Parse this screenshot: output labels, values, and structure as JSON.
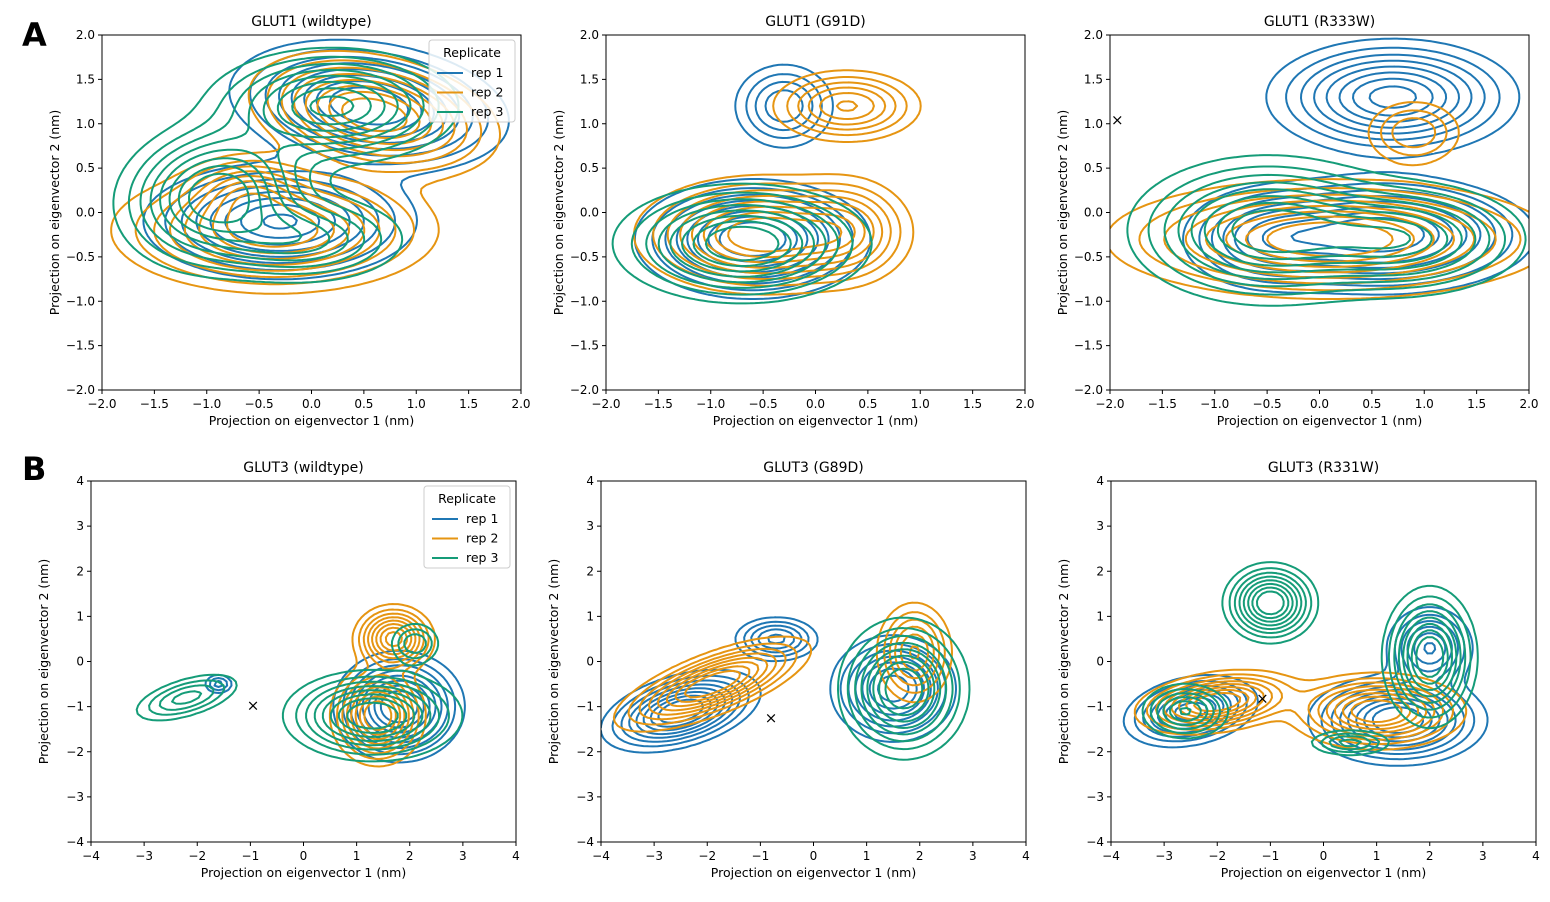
{
  "figure": {
    "panel_labels": [
      "A",
      "B"
    ]
  },
  "colors": {
    "rep 1": "#1f77b4",
    "rep 2": "#e69512",
    "rep 3": "#159c78"
  },
  "chart_data": [
    {
      "type": "contour",
      "title": "GLUT1 (wildtype)",
      "xlabel": "Projection on eigenvector 1 (nm)",
      "ylabel": "Projection on eigenvector 2 (nm)",
      "xlim": [
        -2.0,
        2.0
      ],
      "ylim": [
        -2.0,
        2.0
      ],
      "xticks": [
        "−2.0",
        "−1.5",
        "−1.0",
        "−0.5",
        "0.0",
        "0.5",
        "1.0",
        "1.5",
        "2.0"
      ],
      "yticks": [
        "−2.0",
        "−1.5",
        "−1.0",
        "−0.5",
        "0.0",
        "0.5",
        "1.0",
        "1.5",
        "2.0"
      ],
      "grid": false,
      "legend": {
        "title": "Replicate",
        "entries": [
          "rep 1",
          "rep 2",
          "rep 3"
        ],
        "placement": "top-right"
      },
      "series": [
        {
          "name": "rep 1",
          "modes": [
            {
              "x": 0.55,
              "y": 1.2,
              "sx": 0.6,
              "sy": 0.32,
              "rot": -10,
              "w": 1.0
            },
            {
              "x": -0.3,
              "y": -0.1,
              "sx": 0.6,
              "sy": 0.3,
              "rot": 0,
              "w": 0.85
            }
          ]
        },
        {
          "name": "rep 2",
          "modes": [
            {
              "x": 0.6,
              "y": 1.1,
              "sx": 0.55,
              "sy": 0.3,
              "rot": -15,
              "w": 0.9
            },
            {
              "x": -0.35,
              "y": -0.2,
              "sx": 0.7,
              "sy": 0.32,
              "rot": 0,
              "w": 0.9
            },
            {
              "x": -0.6,
              "y": 0.25,
              "sx": 0.3,
              "sy": 0.2,
              "rot": 0,
              "w": 0.4
            }
          ]
        },
        {
          "name": "rep 3",
          "modes": [
            {
              "x": -0.9,
              "y": 0.2,
              "sx": 0.45,
              "sy": 0.38,
              "rot": 20,
              "w": 0.95
            },
            {
              "x": 0.2,
              "y": 1.2,
              "sx": 0.55,
              "sy": 0.3,
              "rot": 0,
              "w": 0.85
            },
            {
              "x": -0.1,
              "y": -0.3,
              "sx": 0.5,
              "sy": 0.25,
              "rot": 0,
              "w": 0.5
            }
          ]
        }
      ],
      "markers": []
    },
    {
      "type": "contour",
      "title": "GLUT1 (G91D)",
      "xlabel": "Projection on eigenvector 1 (nm)",
      "ylabel": "Projection on eigenvector 2 (nm)",
      "xlim": [
        -2.0,
        2.0
      ],
      "ylim": [
        -2.0,
        2.0
      ],
      "xticks": [
        "−2.0",
        "−1.5",
        "−1.0",
        "−0.5",
        "0.0",
        "0.5",
        "1.0",
        "1.5",
        "2.0"
      ],
      "yticks": [
        "−2.0",
        "−1.5",
        "−1.0",
        "−0.5",
        "0.0",
        "0.5",
        "1.0",
        "1.5",
        "2.0"
      ],
      "grid": false,
      "series": [
        {
          "name": "rep 1",
          "modes": [
            {
              "x": -0.6,
              "y": -0.3,
              "sx": 0.5,
              "sy": 0.3,
              "rot": 0,
              "w": 1.0
            },
            {
              "x": -0.3,
              "y": 1.2,
              "sx": 0.25,
              "sy": 0.25,
              "rot": 0,
              "w": 0.45
            }
          ]
        },
        {
          "name": "rep 2",
          "modes": [
            {
              "x": -0.5,
              "y": -0.25,
              "sx": 0.55,
              "sy": 0.3,
              "rot": 0,
              "w": 0.9
            },
            {
              "x": 0.3,
              "y": 1.2,
              "sx": 0.35,
              "sy": 0.2,
              "rot": 0,
              "w": 0.55
            },
            {
              "x": 0.3,
              "y": -0.2,
              "sx": 0.3,
              "sy": 0.3,
              "rot": 0,
              "w": 0.4
            }
          ]
        },
        {
          "name": "rep 3",
          "modes": [
            {
              "x": -0.7,
              "y": -0.35,
              "sx": 0.55,
              "sy": 0.3,
              "rot": 0,
              "w": 1.0
            }
          ]
        }
      ],
      "markers": []
    },
    {
      "type": "contour",
      "title": "GLUT1 (R333W)",
      "xlabel": "Projection on eigenvector 1 (nm)",
      "ylabel": "Projection on eigenvector 2 (nm)",
      "xlim": [
        -2.0,
        2.0
      ],
      "ylim": [
        -2.0,
        2.0
      ],
      "xticks": [
        "−2.0",
        "−1.5",
        "−1.0",
        "−0.5",
        "0.0",
        "0.5",
        "1.0",
        "1.5",
        "2.0"
      ],
      "yticks": [
        "−2.0",
        "−1.5",
        "−1.0",
        "−0.5",
        "0.0",
        "0.5",
        "1.0",
        "1.5",
        "2.0"
      ],
      "grid": false,
      "series": [
        {
          "name": "rep 1",
          "modes": [
            {
              "x": 0.7,
              "y": 1.3,
              "sx": 0.55,
              "sy": 0.3,
              "rot": 0,
              "w": 0.9
            },
            {
              "x": 0.6,
              "y": -0.25,
              "sx": 0.65,
              "sy": 0.3,
              "rot": 0,
              "w": 1.0
            },
            {
              "x": -0.5,
              "y": -0.3,
              "sx": 0.4,
              "sy": 0.28,
              "rot": 0,
              "w": 0.5
            }
          ]
        },
        {
          "name": "rep 2",
          "modes": [
            {
              "x": 0.1,
              "y": -0.3,
              "sx": 0.95,
              "sy": 0.3,
              "rot": 0,
              "w": 1.0
            },
            {
              "x": 0.9,
              "y": 0.9,
              "sx": 0.25,
              "sy": 0.2,
              "rot": 0,
              "w": 0.35
            }
          ]
        },
        {
          "name": "rep 3",
          "modes": [
            {
              "x": -0.5,
              "y": -0.2,
              "sx": 0.6,
              "sy": 0.38,
              "rot": 0,
              "w": 1.0
            },
            {
              "x": 0.8,
              "y": -0.3,
              "sx": 0.55,
              "sy": 0.3,
              "rot": 0,
              "w": 0.8
            }
          ]
        }
      ],
      "markers": [
        {
          "x": -1.93,
          "y": 1.04,
          "label": "×"
        }
      ]
    },
    {
      "type": "contour",
      "title": "GLUT3 (wildtype)",
      "xlabel": "Projection on eigenvector 1 (nm)",
      "ylabel": "Projection on eigenvector 2 (nm)",
      "xlim": [
        -4,
        4
      ],
      "ylim": [
        -4,
        4
      ],
      "xticks": [
        "−4",
        "−3",
        "−2",
        "−1",
        "0",
        "1",
        "2",
        "3",
        "4"
      ],
      "yticks": [
        "−4",
        "−3",
        "−2",
        "−1",
        "0",
        "1",
        "2",
        "3",
        "4"
      ],
      "grid": false,
      "legend": {
        "title": "Replicate",
        "entries": [
          "rep 1",
          "rep 2",
          "rep 3"
        ],
        "placement": "top-right"
      },
      "series": [
        {
          "name": "rep 1",
          "modes": [
            {
              "x": 1.8,
              "y": -1.0,
              "sx": 0.55,
              "sy": 0.55,
              "rot": 0,
              "w": 1.0
            },
            {
              "x": -1.6,
              "y": -0.5,
              "sx": 0.15,
              "sy": 0.12,
              "rot": 0,
              "w": 0.3
            }
          ]
        },
        {
          "name": "rep 2",
          "modes": [
            {
              "x": 1.7,
              "y": 0.5,
              "sx": 0.35,
              "sy": 0.35,
              "rot": 0,
              "w": 0.9
            },
            {
              "x": 1.4,
              "y": -1.2,
              "sx": 0.4,
              "sy": 0.5,
              "rot": 0,
              "w": 1.0
            }
          ]
        },
        {
          "name": "rep 3",
          "modes": [
            {
              "x": 1.3,
              "y": -1.2,
              "sx": 0.75,
              "sy": 0.45,
              "rot": 0,
              "w": 1.0
            },
            {
              "x": -2.2,
              "y": -0.8,
              "sx": 0.55,
              "sy": 0.22,
              "rot": 20,
              "w": 0.4
            },
            {
              "x": 2.1,
              "y": 0.4,
              "sx": 0.25,
              "sy": 0.25,
              "rot": 0,
              "w": 0.35
            }
          ]
        }
      ],
      "markers": [
        {
          "x": -0.95,
          "y": -0.98,
          "label": "×"
        }
      ]
    },
    {
      "type": "contour",
      "title": "GLUT3 (G89D)",
      "xlabel": "Projection on eigenvector 1 (nm)",
      "ylabel": "Projection on eigenvector 2 (nm)",
      "xlim": [
        -4,
        4
      ],
      "ylim": [
        -4,
        4
      ],
      "xticks": [
        "−4",
        "−3",
        "−2",
        "−1",
        "0",
        "1",
        "2",
        "3",
        "4"
      ],
      "yticks": [
        "−4",
        "−3",
        "−2",
        "−1",
        "0",
        "1",
        "2",
        "3",
        "4"
      ],
      "grid": false,
      "series": [
        {
          "name": "rep 1",
          "modes": [
            {
              "x": -2.5,
              "y": -1.1,
              "sx": 0.7,
              "sy": 0.35,
              "rot": 20,
              "w": 1.0
            },
            {
              "x": -0.7,
              "y": 0.5,
              "sx": 0.4,
              "sy": 0.25,
              "rot": 0,
              "w": 0.5
            },
            {
              "x": 1.5,
              "y": -0.6,
              "sx": 0.55,
              "sy": 0.55,
              "rot": 0,
              "w": 0.8
            }
          ]
        },
        {
          "name": "rep 2",
          "modes": [
            {
              "x": -1.9,
              "y": -0.5,
              "sx": 0.9,
              "sy": 0.3,
              "rot": 25,
              "w": 1.0
            },
            {
              "x": 1.9,
              "y": 0.2,
              "sx": 0.35,
              "sy": 0.55,
              "rot": 0,
              "w": 0.6
            }
          ]
        },
        {
          "name": "rep 3",
          "modes": [
            {
              "x": 1.7,
              "y": -0.6,
              "sx": 0.55,
              "sy": 0.7,
              "rot": 0,
              "w": 1.0
            }
          ]
        }
      ],
      "markers": [
        {
          "x": -0.8,
          "y": -1.25,
          "label": "×"
        }
      ]
    },
    {
      "type": "contour",
      "title": "GLUT3 (R331W)",
      "xlabel": "Projection on eigenvector 1 (nm)",
      "ylabel": "Projection on eigenvector 2 (nm)",
      "xlim": [
        -4,
        4
      ],
      "ylim": [
        -4,
        4
      ],
      "xticks": [
        "−4",
        "−3",
        "−2",
        "−1",
        "0",
        "1",
        "2",
        "3",
        "4"
      ],
      "yticks": [
        "−4",
        "−3",
        "−2",
        "−1",
        "0",
        "1",
        "2",
        "3",
        "4"
      ],
      "grid": false,
      "series": [
        {
          "name": "rep 1",
          "modes": [
            {
              "x": -2.5,
              "y": -1.1,
              "sx": 0.6,
              "sy": 0.35,
              "rot": 15,
              "w": 0.8
            },
            {
              "x": 1.4,
              "y": -1.3,
              "sx": 0.75,
              "sy": 0.45,
              "rot": 0,
              "w": 1.0
            },
            {
              "x": 2.0,
              "y": 0.3,
              "sx": 0.4,
              "sy": 0.45,
              "rot": 0,
              "w": 0.6
            }
          ]
        },
        {
          "name": "rep 2",
          "modes": [
            {
              "x": -2.0,
              "y": -0.9,
              "sx": 0.7,
              "sy": 0.3,
              "rot": 10,
              "w": 1.0
            },
            {
              "x": 1.0,
              "y": -1.1,
              "sx": 0.75,
              "sy": 0.38,
              "rot": 0,
              "w": 1.0
            }
          ]
        },
        {
          "name": "rep 3",
          "modes": [
            {
              "x": -1.0,
              "y": 1.3,
              "sx": 0.4,
              "sy": 0.4,
              "rot": 0,
              "w": 1.0
            },
            {
              "x": 2.0,
              "y": 0.1,
              "sx": 0.4,
              "sy": 0.7,
              "rot": 0,
              "w": 1.0
            },
            {
              "x": -2.6,
              "y": -1.1,
              "sx": 0.4,
              "sy": 0.3,
              "rot": 0,
              "w": 0.6
            },
            {
              "x": 0.5,
              "y": -1.8,
              "sx": 0.4,
              "sy": 0.15,
              "rot": 0,
              "w": 0.4
            }
          ]
        }
      ],
      "markers": [
        {
          "x": -1.15,
          "y": -0.82,
          "label": "×"
        }
      ]
    }
  ]
}
